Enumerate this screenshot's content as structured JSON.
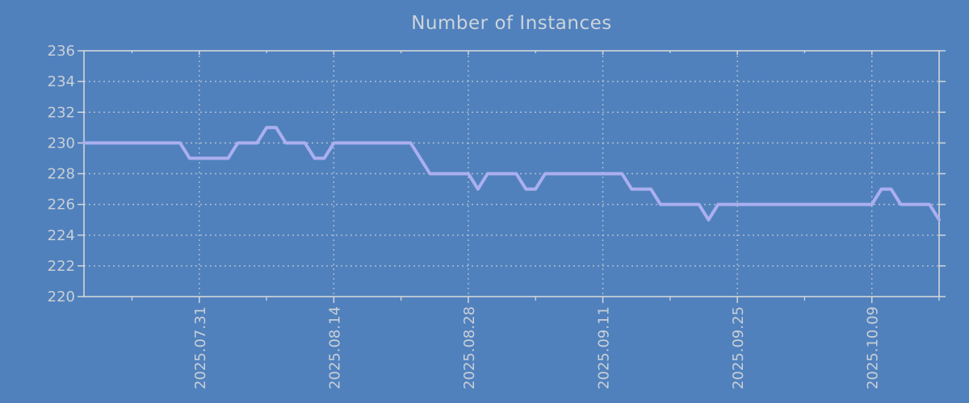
{
  "title": "Number of Instances",
  "colors": {
    "background": "#5081bd",
    "line": "#abafef",
    "border": "#d2d6da",
    "grid": "#c8cdd3",
    "text": "#c9cfd6"
  },
  "chart_data": {
    "type": "line",
    "title": "Number of Instances",
    "xlabel": "",
    "ylabel": "",
    "ylim": [
      220,
      236
    ],
    "y_ticks": [
      220,
      222,
      224,
      226,
      228,
      230,
      232,
      234,
      236
    ],
    "x_tick_labels": [
      "2025.07.31",
      "2025.08.14",
      "2025.08.28",
      "2025.09.11",
      "2025.09.25",
      "2025.10.09"
    ],
    "x_major_tick_idx": [
      12,
      26,
      40,
      54,
      68,
      82
    ],
    "x_minor_tick_idx": [
      5,
      19,
      33,
      47,
      61,
      75,
      89
    ],
    "grid": "dotted",
    "legend": "none",
    "x": [
      "2025.07.19",
      "2025.07.20",
      "2025.07.21",
      "2025.07.22",
      "2025.07.23",
      "2025.07.24",
      "2025.07.25",
      "2025.07.26",
      "2025.07.27",
      "2025.07.28",
      "2025.07.29",
      "2025.07.30",
      "2025.07.31",
      "2025.08.01",
      "2025.08.02",
      "2025.08.03",
      "2025.08.04",
      "2025.08.05",
      "2025.08.06",
      "2025.08.07",
      "2025.08.08",
      "2025.08.09",
      "2025.08.10",
      "2025.08.11",
      "2025.08.12",
      "2025.08.13",
      "2025.08.14",
      "2025.08.15",
      "2025.08.16",
      "2025.08.17",
      "2025.08.18",
      "2025.08.19",
      "2025.08.20",
      "2025.08.21",
      "2025.08.22",
      "2025.08.23",
      "2025.08.24",
      "2025.08.25",
      "2025.08.26",
      "2025.08.27",
      "2025.08.28",
      "2025.08.29",
      "2025.08.30",
      "2025.08.31",
      "2025.09.01",
      "2025.09.02",
      "2025.09.03",
      "2025.09.04",
      "2025.09.05",
      "2025.09.06",
      "2025.09.07",
      "2025.09.08",
      "2025.09.09",
      "2025.09.10",
      "2025.09.11",
      "2025.09.12",
      "2025.09.13",
      "2025.09.14",
      "2025.09.15",
      "2025.09.16",
      "2025.09.17",
      "2025.09.18",
      "2025.09.19",
      "2025.09.20",
      "2025.09.21",
      "2025.09.22",
      "2025.09.23",
      "2025.09.24",
      "2025.09.25",
      "2025.09.26",
      "2025.09.27",
      "2025.09.28",
      "2025.09.29",
      "2025.09.30",
      "2025.10.01",
      "2025.10.02",
      "2025.10.03",
      "2025.10.04",
      "2025.10.05",
      "2025.10.06",
      "2025.10.07",
      "2025.10.08",
      "2025.10.09",
      "2025.10.10",
      "2025.10.11",
      "2025.10.12",
      "2025.10.13",
      "2025.10.14",
      "2025.10.15",
      "2025.10.16"
    ],
    "values": [
      230,
      230,
      230,
      230,
      230,
      230,
      230,
      230,
      230,
      230,
      230,
      229,
      229,
      229,
      229,
      229,
      230,
      230,
      230,
      231,
      231,
      230,
      230,
      230,
      229,
      229,
      230,
      230,
      230,
      230,
      230,
      230,
      230,
      230,
      230,
      229,
      228,
      228,
      228,
      228,
      228,
      227,
      228,
      228,
      228,
      228,
      227,
      227,
      228,
      228,
      228,
      228,
      228,
      228,
      228,
      228,
      228,
      227,
      227,
      227,
      226,
      226,
      226,
      226,
      226,
      225,
      226,
      226,
      226,
      226,
      226,
      226,
      226,
      226,
      226,
      226,
      226,
      226,
      226,
      226,
      226,
      226,
      226,
      227,
      227,
      226,
      226,
      226,
      226,
      225
    ]
  }
}
